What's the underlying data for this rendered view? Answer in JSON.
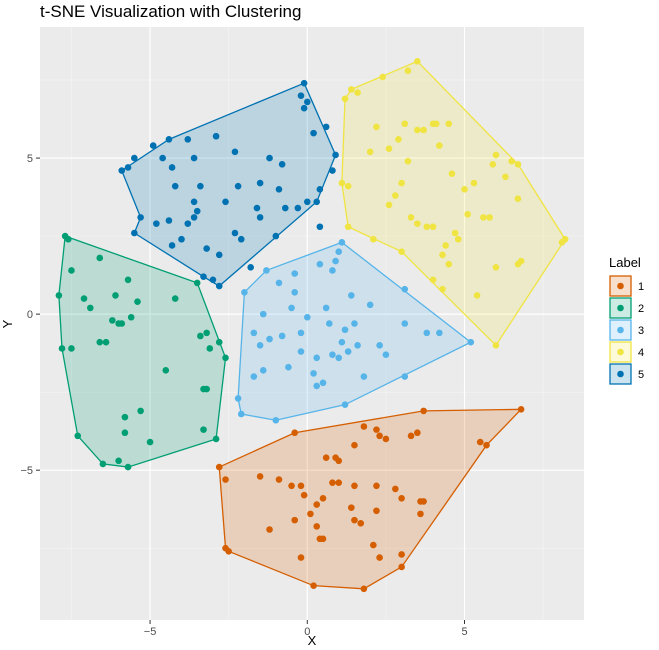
{
  "chart_data": {
    "type": "scatter",
    "title": "t-SNE Visualization with Clustering",
    "xlabel": "X",
    "ylabel": "Y",
    "xlim": [
      -8.5,
      8.8
    ],
    "ylim": [
      -9.8,
      9.2
    ],
    "xticks": [
      -5,
      0,
      5
    ],
    "yticks": [
      -5,
      0,
      5
    ],
    "grid": true,
    "legend": {
      "title": "Label",
      "position": "right"
    },
    "series": [
      {
        "name": "1",
        "color": "#D55E00",
        "hull": [
          [
            -2.8,
            -4.9
          ],
          [
            -0.4,
            -3.8
          ],
          [
            3.7,
            -3.1
          ],
          [
            6.8,
            -3.05
          ],
          [
            5.7,
            -4.2
          ],
          [
            3.0,
            -8.1
          ],
          [
            1.8,
            -8.8
          ],
          [
            0.2,
            -8.7
          ],
          [
            -2.5,
            -7.6
          ],
          [
            -2.6,
            -7.5
          ]
        ],
        "points": [
          [
            -2.8,
            -4.9
          ],
          [
            -2.6,
            -5.3
          ],
          [
            -0.4,
            -3.8
          ],
          [
            3.7,
            -3.1
          ],
          [
            6.8,
            -3.05
          ],
          [
            5.7,
            -4.2
          ],
          [
            5.5,
            -4.1
          ],
          [
            3.0,
            -8.1
          ],
          [
            1.8,
            -8.8
          ],
          [
            0.2,
            -8.7
          ],
          [
            -2.5,
            -7.6
          ],
          [
            -2.6,
            -7.5
          ],
          [
            -1.5,
            -5.2
          ],
          [
            -1.2,
            -6.9
          ],
          [
            -0.5,
            -5.5
          ],
          [
            -0.2,
            -7.8
          ],
          [
            0.1,
            -6.4
          ],
          [
            0.3,
            -6.8
          ],
          [
            0.5,
            -7.2
          ],
          [
            0.8,
            -5.4
          ],
          [
            1.0,
            -5.4
          ],
          [
            1.4,
            -6.2
          ],
          [
            1.5,
            -6.6
          ],
          [
            1.7,
            -6.7
          ],
          [
            2.1,
            -7.4
          ],
          [
            2.3,
            -7.8
          ],
          [
            2.2,
            -6.3
          ],
          [
            2.3,
            -3.9
          ],
          [
            2.5,
            -4.0
          ],
          [
            3.0,
            -5.9
          ],
          [
            3.0,
            -7.7
          ],
          [
            3.6,
            -6.0
          ],
          [
            3.7,
            -6.0
          ],
          [
            3.6,
            -6.4
          ],
          [
            3.3,
            -3.9
          ],
          [
            3.5,
            -3.8
          ],
          [
            0.5,
            -5.9
          ],
          [
            0.3,
            -6.1
          ],
          [
            -0.4,
            -6.6
          ],
          [
            -0.9,
            -5.3
          ],
          [
            -0.2,
            -5.5
          ],
          [
            0.9,
            -4.6
          ],
          [
            1.5,
            -5.5
          ],
          [
            1.8,
            -3.6
          ],
          [
            0.6,
            -4.6
          ],
          [
            2.2,
            -3.7
          ],
          [
            0.4,
            -7.2
          ],
          [
            1.0,
            -4.7
          ],
          [
            2.2,
            -5.5
          ],
          [
            -0.1,
            -5.8
          ],
          [
            2.8,
            -5.6
          ],
          [
            1.5,
            -4.2
          ]
        ]
      },
      {
        "name": "2",
        "color": "#009E73",
        "hull": [
          [
            -7.7,
            2.5
          ],
          [
            -3.5,
            1.0
          ],
          [
            -2.6,
            -1.4
          ],
          [
            -2.9,
            -4.0
          ],
          [
            -5.7,
            -4.9
          ],
          [
            -6.5,
            -4.8
          ],
          [
            -7.3,
            -3.9
          ],
          [
            -7.8,
            -1.1
          ],
          [
            -7.9,
            0.6
          ]
        ],
        "points": [
          [
            -7.7,
            2.5
          ],
          [
            -7.6,
            2.4
          ],
          [
            -3.5,
            1.0
          ],
          [
            -2.6,
            -1.4
          ],
          [
            -2.9,
            -4.0
          ],
          [
            -5.7,
            -4.9
          ],
          [
            -6.5,
            -4.8
          ],
          [
            -7.3,
            -3.9
          ],
          [
            -7.8,
            -1.1
          ],
          [
            -7.9,
            0.6
          ],
          [
            -7.5,
            1.4
          ],
          [
            -6.6,
            1.8
          ],
          [
            -7.1,
            0.5
          ],
          [
            -6.9,
            0.2
          ],
          [
            -6.4,
            -0.9
          ],
          [
            -6.2,
            -0.2
          ],
          [
            -6.0,
            -0.3
          ],
          [
            -5.9,
            -0.3
          ],
          [
            -6.1,
            0.6
          ],
          [
            -5.6,
            -0.1
          ],
          [
            -5.4,
            0.4
          ],
          [
            -4.5,
            -1.8
          ],
          [
            -4.2,
            0.5
          ],
          [
            -5.8,
            -3.3
          ],
          [
            -5.3,
            -3.1
          ],
          [
            -5.0,
            -4.1
          ],
          [
            -5.8,
            -3.8
          ],
          [
            -6.0,
            -4.7
          ],
          [
            -3.2,
            -0.6
          ],
          [
            -3.1,
            -1.1
          ],
          [
            -3.3,
            -2.4
          ],
          [
            -3.2,
            -2.4
          ],
          [
            -3.3,
            -3.7
          ],
          [
            -2.8,
            -0.9
          ],
          [
            -3.4,
            -0.7
          ],
          [
            -5.7,
            1.1
          ],
          [
            -7.5,
            -1.1
          ],
          [
            -6.6,
            -0.9
          ]
        ]
      },
      {
        "name": "3",
        "color": "#56B4E9",
        "hull": [
          [
            1.1,
            2.3
          ],
          [
            5.2,
            -0.9
          ],
          [
            1.2,
            -2.9
          ],
          [
            -1.0,
            -3.4
          ],
          [
            -2.1,
            -3.2
          ],
          [
            -2.2,
            -2.7
          ],
          [
            -2.0,
            0.7
          ],
          [
            -1.3,
            1.4
          ]
        ],
        "points": [
          [
            1.1,
            2.3
          ],
          [
            5.2,
            -0.9
          ],
          [
            1.2,
            -2.9
          ],
          [
            -1.0,
            -3.4
          ],
          [
            -2.1,
            -3.2
          ],
          [
            -2.2,
            -2.7
          ],
          [
            -2.0,
            0.7
          ],
          [
            -1.3,
            1.4
          ],
          [
            -1.7,
            -2.0
          ],
          [
            -1.7,
            -0.6
          ],
          [
            -1.5,
            -1.0
          ],
          [
            -1.4,
            -1.8
          ],
          [
            -1.2,
            -0.8
          ],
          [
            -0.8,
            -0.7
          ],
          [
            -0.6,
            -1.7
          ],
          [
            -0.5,
            0.2
          ],
          [
            -0.4,
            0.7
          ],
          [
            -0.2,
            -1.2
          ],
          [
            0.2,
            -1.9
          ],
          [
            0.3,
            -1.4
          ],
          [
            0.3,
            -2.3
          ],
          [
            0.5,
            -2.2
          ],
          [
            0.6,
            0.2
          ],
          [
            0.7,
            -0.3
          ],
          [
            0.8,
            -1.3
          ],
          [
            0.9,
            1.7
          ],
          [
            1.0,
            -1.4
          ],
          [
            1.1,
            -0.9
          ],
          [
            1.2,
            -0.5
          ],
          [
            1.3,
            -1.2
          ],
          [
            1.4,
            0.6
          ],
          [
            1.5,
            -0.3
          ],
          [
            1.6,
            -1.0
          ],
          [
            1.8,
            -2.0
          ],
          [
            2.0,
            0.3
          ],
          [
            2.3,
            -1.0
          ],
          [
            3.1,
            0.8
          ],
          [
            3.1,
            -0.3
          ],
          [
            3.8,
            -0.6
          ],
          [
            4.2,
            -0.6
          ],
          [
            3.1,
            -2.0
          ],
          [
            2.5,
            -1.3
          ],
          [
            0.8,
            1.4
          ],
          [
            1.0,
            2.0
          ],
          [
            0.4,
            1.6
          ],
          [
            -0.4,
            1.3
          ],
          [
            0.0,
            -0.1
          ],
          [
            -0.2,
            -0.6
          ],
          [
            -1.4,
            0.0
          ],
          [
            -0.9,
            1.0
          ]
        ]
      },
      {
        "name": "4",
        "color": "#F0E442",
        "hull": [
          [
            3.5,
            8.1
          ],
          [
            6.7,
            4.8
          ],
          [
            8.2,
            2.4
          ],
          [
            6.0,
            -1.0
          ],
          [
            3.0,
            2.0
          ],
          [
            1.3,
            2.8
          ],
          [
            1.1,
            4.2
          ],
          [
            1.2,
            6.9
          ],
          [
            1.4,
            7.2
          ]
        ],
        "points": [
          [
            3.5,
            8.1
          ],
          [
            6.7,
            4.8
          ],
          [
            8.2,
            2.4
          ],
          [
            8.1,
            2.3
          ],
          [
            6.0,
            -1.0
          ],
          [
            3.0,
            2.0
          ],
          [
            1.3,
            2.8
          ],
          [
            1.1,
            4.2
          ],
          [
            1.2,
            6.9
          ],
          [
            1.4,
            7.2
          ],
          [
            1.6,
            7.1
          ],
          [
            2.4,
            7.6
          ],
          [
            3.2,
            7.8
          ],
          [
            2.0,
            5.2
          ],
          [
            2.2,
            6.0
          ],
          [
            2.6,
            5.3
          ],
          [
            2.9,
            5.6
          ],
          [
            3.1,
            6.1
          ],
          [
            3.2,
            4.9
          ],
          [
            3.5,
            5.9
          ],
          [
            3.7,
            5.9
          ],
          [
            4.0,
            6.1
          ],
          [
            4.0,
            2.8
          ],
          [
            4.1,
            6.1
          ],
          [
            4.2,
            5.4
          ],
          [
            4.5,
            6.1
          ],
          [
            4.6,
            4.5
          ],
          [
            5.0,
            4.0
          ],
          [
            5.3,
            4.2
          ],
          [
            5.1,
            3.2
          ],
          [
            4.4,
            2.2
          ],
          [
            4.7,
            2.6
          ],
          [
            4.5,
            1.6
          ],
          [
            4.3,
            1.9
          ],
          [
            4.8,
            2.4
          ],
          [
            5.6,
            3.1
          ],
          [
            5.8,
            3.1
          ],
          [
            5.9,
            4.8
          ],
          [
            6.0,
            5.1
          ],
          [
            6.3,
            4.4
          ],
          [
            6.5,
            4.9
          ],
          [
            6.7,
            3.7
          ],
          [
            6.8,
            1.7
          ],
          [
            5.4,
            0.6
          ],
          [
            4.0,
            1.1
          ],
          [
            3.5,
            2.9
          ],
          [
            3.3,
            3.1
          ],
          [
            2.6,
            3.5
          ],
          [
            2.8,
            3.8
          ],
          [
            3.0,
            4.2
          ],
          [
            2.1,
            2.4
          ],
          [
            1.3,
            4.1
          ],
          [
            3.8,
            2.8
          ],
          [
            4.3,
            0.8
          ],
          [
            6.0,
            1.5
          ],
          [
            6.7,
            1.6
          ]
        ]
      },
      {
        "name": "5",
        "color": "#0072B2",
        "hull": [
          [
            -0.1,
            7.4
          ],
          [
            0.9,
            5.1
          ],
          [
            0.3,
            3.6
          ],
          [
            -2.8,
            0.9
          ],
          [
            -3.3,
            1.2
          ],
          [
            -5.5,
            2.6
          ],
          [
            -5.3,
            3.1
          ],
          [
            -5.9,
            4.6
          ],
          [
            -4.4,
            5.6
          ]
        ],
        "points": [
          [
            -0.1,
            7.4
          ],
          [
            0.9,
            5.1
          ],
          [
            0.3,
            3.6
          ],
          [
            -2.8,
            0.9
          ],
          [
            -3.3,
            1.2
          ],
          [
            -5.5,
            2.6
          ],
          [
            -5.3,
            3.1
          ],
          [
            -5.9,
            4.6
          ],
          [
            -4.4,
            5.6
          ],
          [
            -5.5,
            5.0
          ],
          [
            -5.7,
            4.7
          ],
          [
            -4.9,
            5.4
          ],
          [
            -4.6,
            5.0
          ],
          [
            -4.3,
            4.7
          ],
          [
            -4.2,
            4.1
          ],
          [
            -3.8,
            5.6
          ],
          [
            -3.6,
            5.0
          ],
          [
            -3.4,
            4.1
          ],
          [
            -3.6,
            3.6
          ],
          [
            -2.9,
            5.7
          ],
          [
            -2.3,
            5.2
          ],
          [
            -2.2,
            4.1
          ],
          [
            -1.6,
            3.4
          ],
          [
            -1.5,
            4.2
          ],
          [
            -1.2,
            5.0
          ],
          [
            -0.9,
            4.0
          ],
          [
            -0.8,
            4.8
          ],
          [
            -0.7,
            3.4
          ],
          [
            -0.3,
            3.4
          ],
          [
            0.0,
            3.6
          ],
          [
            0.2,
            5.8
          ],
          [
            0.4,
            4.0
          ],
          [
            0.6,
            6.0
          ],
          [
            0.8,
            4.6
          ],
          [
            0.0,
            6.8
          ],
          [
            -0.2,
            7.0
          ],
          [
            -0.1,
            6.6
          ],
          [
            -3.8,
            2.9
          ],
          [
            -3.5,
            3.3
          ],
          [
            -4.0,
            2.4
          ],
          [
            -4.4,
            3.0
          ],
          [
            -4.3,
            2.2
          ],
          [
            -3.6,
            3.1
          ],
          [
            -2.1,
            2.4
          ],
          [
            -2.3,
            2.6
          ],
          [
            -1.8,
            1.5
          ],
          [
            -1.5,
            3.1
          ],
          [
            -2.6,
            3.6
          ],
          [
            -3.2,
            2.1
          ],
          [
            -4.8,
            2.9
          ],
          [
            -3.0,
            1.1
          ],
          [
            -2.8,
            1.9
          ],
          [
            -1.0,
            2.5
          ],
          [
            0.4,
            2.8
          ]
        ]
      }
    ]
  }
}
